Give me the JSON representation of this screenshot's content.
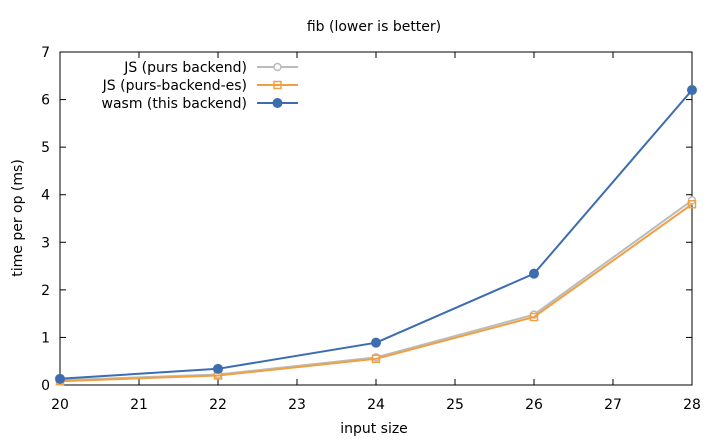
{
  "chart_data": {
    "type": "line",
    "title": "fib   (lower is better)",
    "xlabel": "input size",
    "ylabel": "time per op (ms)",
    "xlim": [
      20,
      28
    ],
    "ylim": [
      0,
      7
    ],
    "x_ticks": [
      "20",
      "21",
      "22",
      "23",
      "24",
      "25",
      "26",
      "27",
      "28"
    ],
    "y_ticks": [
      "0",
      "1",
      "2",
      "3",
      "4",
      "5",
      "6",
      "7"
    ],
    "grid": false,
    "legend_position": "top-left",
    "x": [
      20,
      22,
      24,
      26,
      28
    ],
    "series": [
      {
        "name": "JS (purs backend)",
        "values": [
          0.1,
          0.22,
          0.58,
          1.48,
          3.88
        ],
        "color": "#bbbbbb",
        "marker": "circle-open"
      },
      {
        "name": "JS (purs-backend-es)",
        "values": [
          0.08,
          0.2,
          0.55,
          1.43,
          3.8
        ],
        "color": "#f0a040",
        "marker": "square-open"
      },
      {
        "name": "wasm (this backend)",
        "values": [
          0.13,
          0.34,
          0.89,
          2.34,
          6.2
        ],
        "color": "#3d6db0",
        "marker": "circle-filled"
      }
    ]
  }
}
